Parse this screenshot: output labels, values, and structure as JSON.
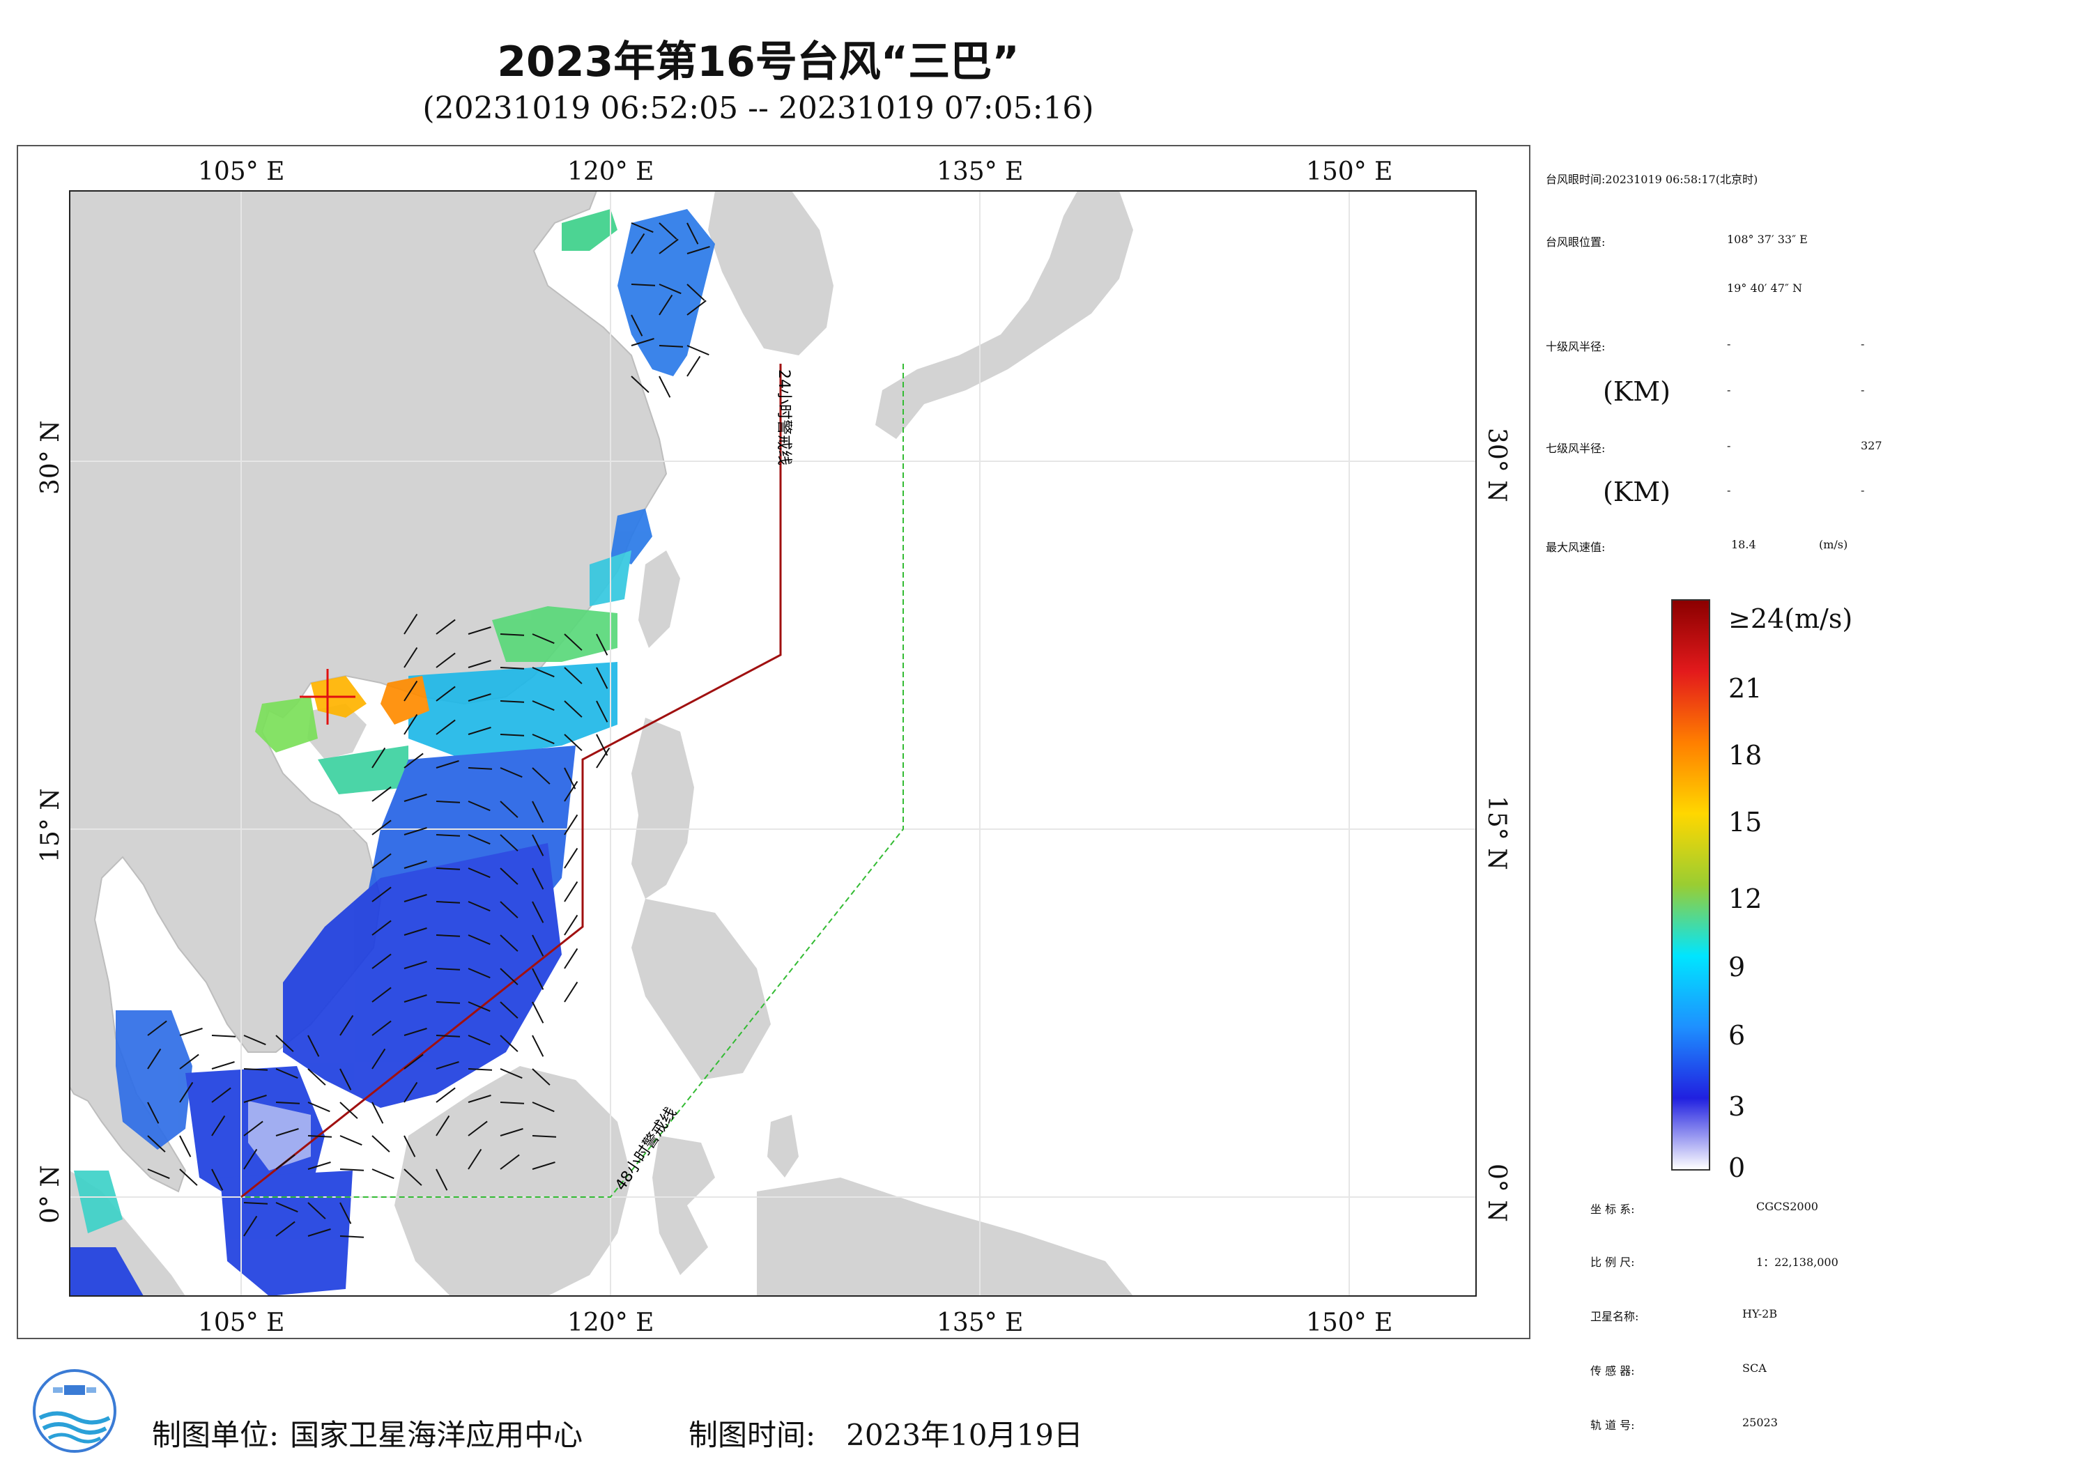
{
  "header": {
    "title": "2023年第16号台风“三巴”",
    "subtitle": "(20231019 06:52:05 -- 20231019 07:05:16)"
  },
  "map": {
    "lon_labels": [
      "105° E",
      "120° E",
      "135° E",
      "150° E"
    ],
    "lat_labels": [
      "30° N",
      "15° N",
      "0° N"
    ],
    "line_24h_label": "24小时警戒线",
    "line_48h_label": "48小时警戒线",
    "colors": {
      "land": "#d3d3d3",
      "ocean": "#ffffff",
      "line_24h": "#a01010",
      "line_48h": "#33bb33"
    }
  },
  "info": {
    "eye_time_label": "台风眼时间:",
    "eye_time_value": "20231019 06:58:17(北京时)",
    "eye_pos_label": "台风眼位置:",
    "eye_lon": "108° 37′ 33″ E",
    "eye_lat": "19° 40′ 47″ N",
    "r10_label": "十级风半径:",
    "r10_unit": "(KM)",
    "r10_values": [
      "-",
      "-",
      "-",
      "-"
    ],
    "r7_label": "七级风半径:",
    "r7_unit": "(KM)",
    "r7_values": [
      "-",
      "327",
      "-",
      "-"
    ],
    "max_wind_label": "最大风速值:",
    "max_wind_value": "18.4",
    "max_wind_unit": "(m/s)"
  },
  "colorbar": {
    "ticks": [
      "≥24(m/s)",
      "21",
      "18",
      "15",
      "12",
      "9",
      "6",
      "3",
      "0"
    ],
    "stops": [
      "#8b0000",
      "#e31a1c",
      "#ff7f00",
      "#ffd700",
      "#9acd32",
      "#00e5ff",
      "#1e90ff",
      "#2020e0",
      "#ffffff"
    ]
  },
  "meta": {
    "crs_label": "坐 标 系:",
    "crs_value": "CGCS2000",
    "scale_label": "比 例 尺:",
    "scale_value": "1：22,138,000",
    "satellite_label": "卫星名称:",
    "satellite_value": "HY-2B",
    "sensor_label": "传 感 器:",
    "sensor_value": "SCA",
    "orbit_label": "轨 道 号:",
    "orbit_value": "25023"
  },
  "footer": {
    "maker_label": "制图单位:",
    "maker_value": "国家卫星海洋应用中心",
    "date_label": "制图时间:",
    "date_value": "2023年10月19日"
  }
}
